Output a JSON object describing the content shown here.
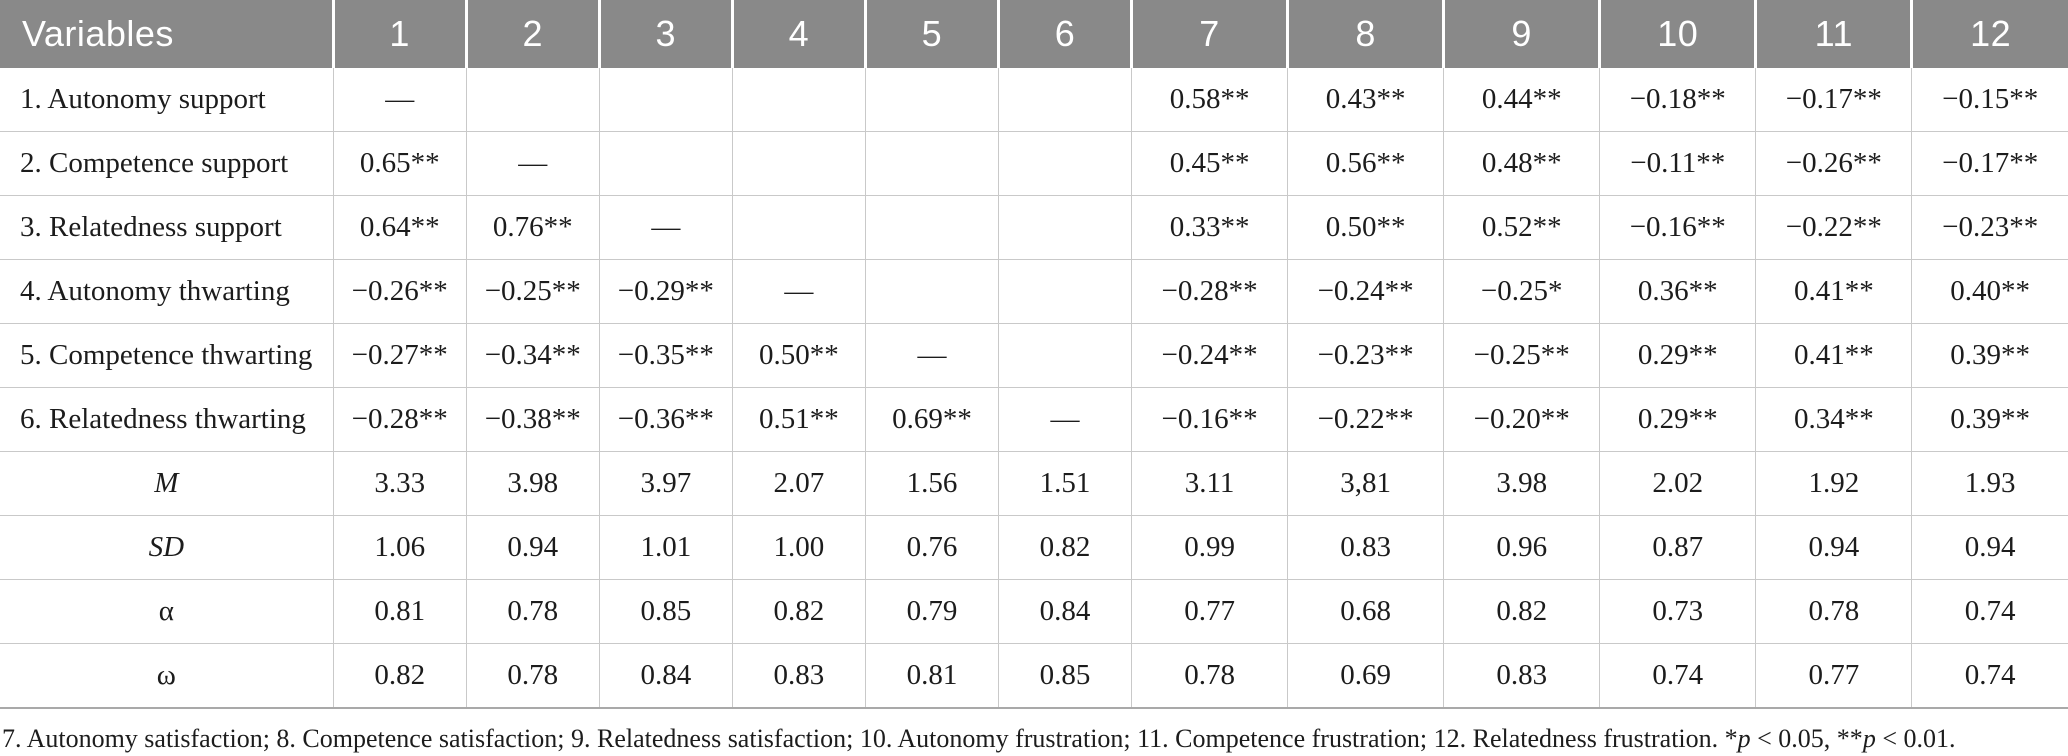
{
  "table": {
    "header": {
      "variables_label": "Variables",
      "columns": [
        "1",
        "2",
        "3",
        "4",
        "5",
        "6",
        "7",
        "8",
        "9",
        "10",
        "11",
        "12"
      ]
    },
    "rows": [
      {
        "label": "1. Autonomy support",
        "center": false,
        "italic": false,
        "values": [
          "—",
          "",
          "",
          "",
          "",
          "",
          "0.58**",
          "0.43**",
          "0.44**",
          "−0.18**",
          "−0.17**",
          "−0.15**"
        ]
      },
      {
        "label": "2. Competence support",
        "center": false,
        "italic": false,
        "values": [
          "0.65**",
          "—",
          "",
          "",
          "",
          "",
          "0.45**",
          "0.56**",
          "0.48**",
          "−0.11**",
          "−0.26**",
          "−0.17**"
        ]
      },
      {
        "label": "3. Relatedness support",
        "center": false,
        "italic": false,
        "values": [
          "0.64**",
          "0.76**",
          "—",
          "",
          "",
          "",
          "0.33**",
          "0.50**",
          "0.52**",
          "−0.16**",
          "−0.22**",
          "−0.23**"
        ]
      },
      {
        "label": "4. Autonomy thwarting",
        "center": false,
        "italic": false,
        "values": [
          "−0.26**",
          "−0.25**",
          "−0.29**",
          "—",
          "",
          "",
          "−0.28**",
          "−0.24**",
          "−0.25*",
          "0.36**",
          "0.41**",
          "0.40**"
        ]
      },
      {
        "label": "5. Competence thwarting",
        "center": false,
        "italic": false,
        "values": [
          "−0.27**",
          "−0.34**",
          "−0.35**",
          "0.50**",
          "—",
          "",
          "−0.24**",
          "−0.23**",
          "−0.25**",
          "0.29**",
          "0.41**",
          "0.39**"
        ]
      },
      {
        "label": "6. Relatedness thwarting",
        "center": false,
        "italic": false,
        "values": [
          "−0.28**",
          "−0.38**",
          "−0.36**",
          "0.51**",
          "0.69**",
          "—",
          "−0.16**",
          "−0.22**",
          "−0.20**",
          "0.29**",
          "0.34**",
          "0.39**"
        ]
      },
      {
        "label": "M",
        "center": true,
        "italic": true,
        "values": [
          "3.33",
          "3.98",
          "3.97",
          "2.07",
          "1.56",
          "1.51",
          "3.11",
          "3,81",
          "3.98",
          "2.02",
          "1.92",
          "1.93"
        ]
      },
      {
        "label": "SD",
        "center": true,
        "italic": true,
        "values": [
          "1.06",
          "0.94",
          "1.01",
          "1.00",
          "0.76",
          "0.82",
          "0.99",
          "0.83",
          "0.96",
          "0.87",
          "0.94",
          "0.94"
        ]
      },
      {
        "label": "α",
        "center": true,
        "italic": false,
        "values": [
          "0.81",
          "0.78",
          "0.85",
          "0.82",
          "0.79",
          "0.84",
          "0.77",
          "0.68",
          "0.82",
          "0.73",
          "0.78",
          "0.74"
        ]
      },
      {
        "label": "ω",
        "center": true,
        "italic": false,
        "values": [
          "0.82",
          "0.78",
          "0.84",
          "0.83",
          "0.81",
          "0.85",
          "0.78",
          "0.69",
          "0.83",
          "0.74",
          "0.77",
          "0.74"
        ]
      }
    ],
    "footnote": {
      "parts": [
        {
          "text": "7. Autonomy satisfaction; 8. Competence satisfaction; 9. Relatedness satisfaction; 10. Autonomy frustration; 11. Competence frustration; 12. Relatedness frustration. *",
          "italic": false
        },
        {
          "text": "p",
          "italic": true
        },
        {
          "text": " < 0.05, **",
          "italic": false
        },
        {
          "text": "p",
          "italic": true
        },
        {
          "text": " < 0.01.",
          "italic": false
        }
      ]
    },
    "colors": {
      "header_bg": "#898989",
      "header_text": "#ffffff",
      "body_text": "#1c1c1c",
      "grid_line": "#c9c9c9"
    }
  }
}
